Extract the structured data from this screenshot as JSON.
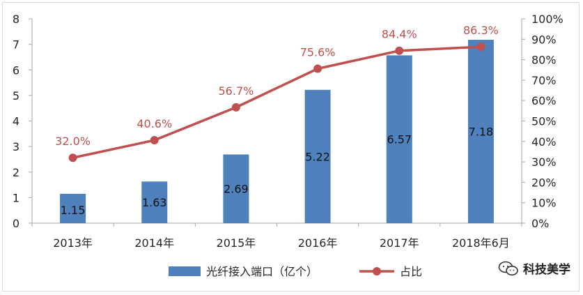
{
  "chart_data": {
    "type": "bar+line",
    "categories": [
      "2013年",
      "2014年",
      "2015年",
      "2016年",
      "2017年",
      "2018年6月"
    ],
    "series": [
      {
        "name": "光纤接入端口（亿个）",
        "type": "bar",
        "axis": "left",
        "color": "#4f81bd",
        "values": [
          1.15,
          1.63,
          2.69,
          5.22,
          6.57,
          7.18
        ],
        "labels": [
          "1.15",
          "1.63",
          "2.69",
          "5.22",
          "6.57",
          "7.18"
        ]
      },
      {
        "name": "占比",
        "type": "line",
        "axis": "right",
        "color": "#c0504d",
        "values": [
          32.0,
          40.6,
          56.7,
          75.6,
          84.4,
          86.3
        ],
        "labels": [
          "32.0%",
          "40.6%",
          "56.7%",
          "75.6%",
          "84.4%",
          "86.3%"
        ]
      }
    ],
    "y_left": {
      "min": 0,
      "max": 8,
      "ticks": [
        "0",
        "1",
        "2",
        "3",
        "4",
        "5",
        "6",
        "7",
        "8"
      ]
    },
    "y_right": {
      "min": 0,
      "max": 100,
      "ticks": [
        "0%",
        "10%",
        "20%",
        "30%",
        "40%",
        "50%",
        "60%",
        "70%",
        "80%",
        "90%",
        "100%"
      ]
    },
    "grid": false,
    "legend_position": "bottom"
  },
  "watermark": {
    "text": "科技美学",
    "icon": "wechat-icon"
  }
}
